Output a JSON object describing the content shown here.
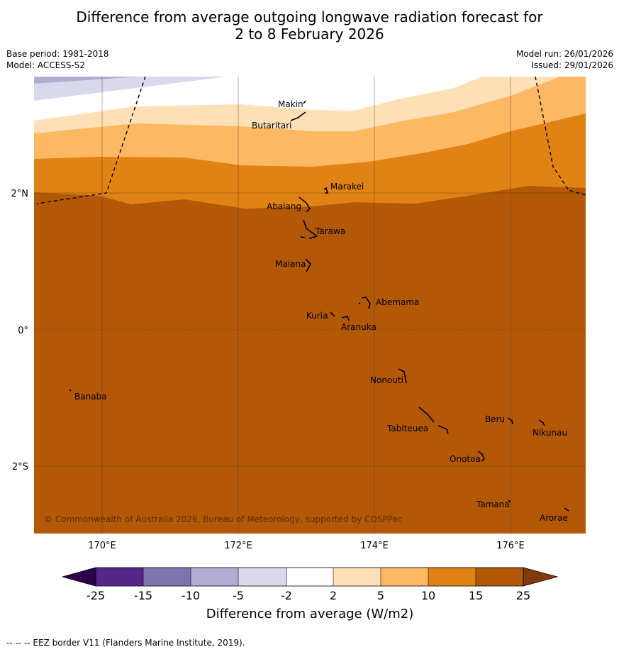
{
  "title": {
    "line1": "Difference from average outgoing longwave radiation forecast for",
    "line2": "2 to 8 February 2026"
  },
  "meta": {
    "base_period": "Base period: 1981-2018",
    "model": "Model: ACCESS-S2",
    "model_run": "Model run: 26/01/2026",
    "issued": "Issued: 29/01/2026"
  },
  "axes": {
    "lon_labels": [
      "170°E",
      "172°E",
      "174°E",
      "176°E"
    ],
    "lat_labels": [
      "2°N",
      "0°",
      "2°S"
    ]
  },
  "islands": {
    "makin": "Makin",
    "butaritari": "Butaritari",
    "marakei": "Marakei",
    "abaiang": "Abaiang",
    "tarawa": "Tarawa",
    "maiana": "Maiana",
    "abemama": "Abemama",
    "kuria": "Kuria",
    "aranuka": "Aranuka",
    "nonouti": "Nonouti",
    "banaba": "Banaba",
    "beru": "Beru",
    "tabiteuea": "Tabiteuea",
    "nikunau": "Nikunau",
    "onotoa": "Onotoa",
    "tamana": "Tamana",
    "arorae": "Arorae"
  },
  "copyright": "© Commonwealth of Australia 2026, Bureau of Meteorology, supported by COSPPac",
  "colorbar": {
    "title": "Difference from average (W/m2)",
    "ticks": [
      "-25",
      "-15",
      "-10",
      "-5",
      "-2",
      "2",
      "5",
      "10",
      "15",
      "25"
    ],
    "colors": {
      "below_min": "#2d004b",
      "neg25_15": "#542788",
      "neg15_10": "#8073ac",
      "neg10_5": "#b2abd2",
      "neg5_2": "#d8daeb",
      "neg2_2": "#ffffff",
      "pos2_5": "#fee0b6",
      "pos5_10": "#fdb863",
      "pos10_15": "#e08214",
      "pos15_25": "#b35806",
      "above_max": "#7f3b08"
    }
  },
  "footnote": "--  --  -- EEZ border V11 (Flanders Marine Institute, 2019)."
}
